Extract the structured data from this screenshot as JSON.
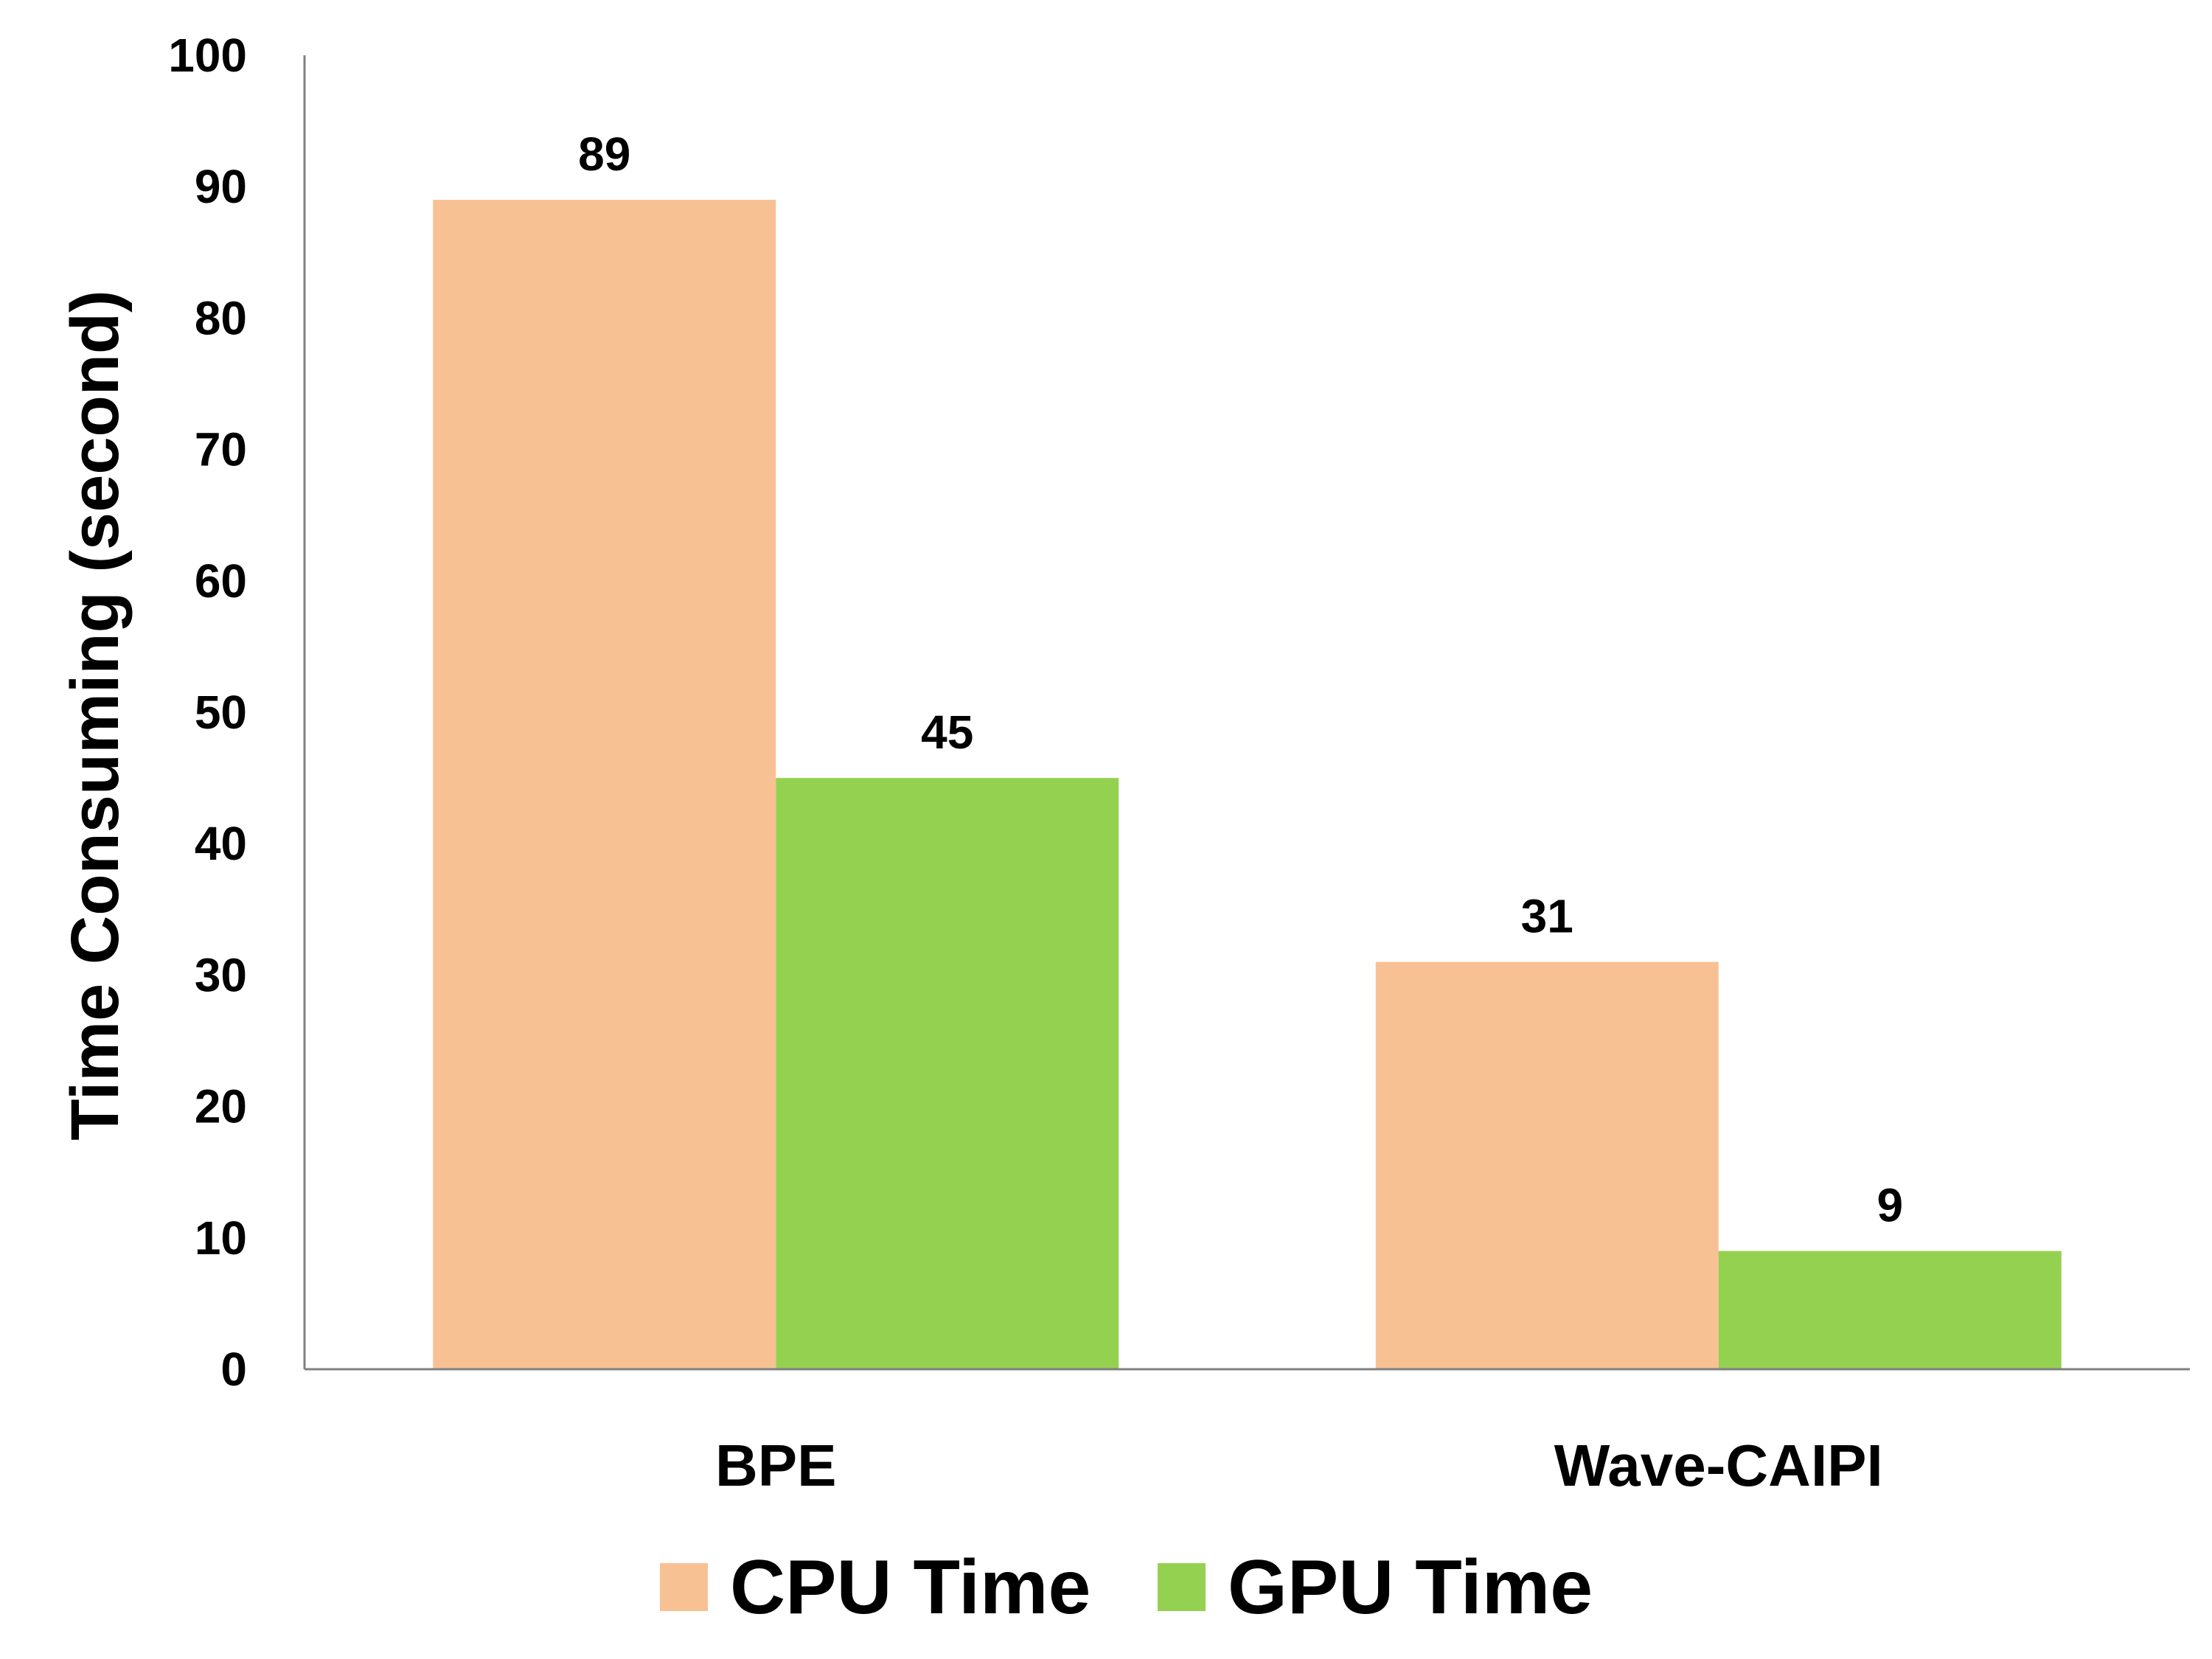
{
  "chart_data": {
    "type": "bar",
    "title": "",
    "xlabel": "",
    "ylabel": "Time Consuming (second)",
    "ylim": [
      0,
      100
    ],
    "yticks": [
      0,
      10,
      20,
      30,
      40,
      50,
      60,
      70,
      80,
      90,
      100
    ],
    "grid": false,
    "legend_position": "bottom",
    "categories": [
      "BPE",
      "Wave-CAIPI"
    ],
    "series": [
      {
        "name": "CPU Time",
        "values": [
          89,
          31
        ],
        "color": "#F8C194"
      },
      {
        "name": "GPU Time",
        "values": [
          45,
          9
        ],
        "color": "#95D150"
      }
    ],
    "data_labels": true
  }
}
